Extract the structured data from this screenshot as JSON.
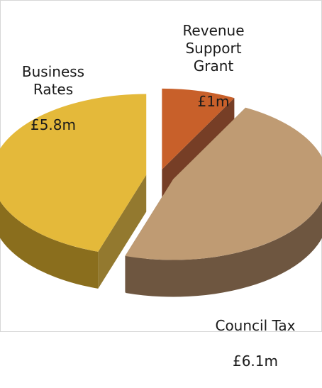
{
  "chart_data": {
    "type": "pie",
    "style": "3d-exploded",
    "slices": [
      {
        "key": "revenue",
        "label": "Revenue\nSupport\nGrant",
        "value_label": "£1m",
        "value": 1.0,
        "color_top": "#c8602a",
        "color_side": "#6a2e13"
      },
      {
        "key": "council",
        "label": "Council Tax",
        "value_label": "£6.1m",
        "value": 6.1,
        "color_top": "#bf9b73",
        "color_side": "#6e5640"
      },
      {
        "key": "business",
        "label": "Business\nRates",
        "value_label": "£5.8m",
        "value": 5.8,
        "color_top": "#e4b93a",
        "color_side": "#8a6e1d"
      }
    ]
  }
}
